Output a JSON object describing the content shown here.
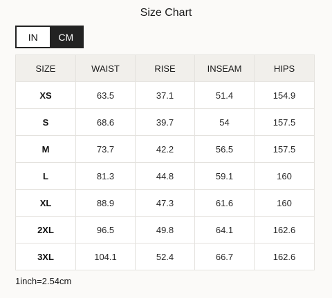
{
  "title": "Size Chart",
  "unit_toggle": {
    "options": [
      "IN",
      "CM"
    ],
    "selected": "CM"
  },
  "table": {
    "headers": [
      "SIZE",
      "WAIST",
      "RISE",
      "INSEAM",
      "HIPS"
    ],
    "rows": [
      [
        "XS",
        "63.5",
        "37.1",
        "51.4",
        "154.9"
      ],
      [
        "S",
        "68.6",
        "39.7",
        "54",
        "157.5"
      ],
      [
        "M",
        "73.7",
        "42.2",
        "56.5",
        "157.5"
      ],
      [
        "L",
        "81.3",
        "44.8",
        "59.1",
        "160"
      ],
      [
        "XL",
        "88.9",
        "47.3",
        "61.6",
        "160"
      ],
      [
        "2XL",
        "96.5",
        "49.8",
        "64.1",
        "162.6"
      ],
      [
        "3XL",
        "104.1",
        "52.4",
        "66.7",
        "162.6"
      ]
    ]
  },
  "footnote": "1inch=2.54cm",
  "colors": {
    "toggle_active_bg": "#222222",
    "header_bg": "#f1efeb",
    "border": "#e4e2de"
  }
}
